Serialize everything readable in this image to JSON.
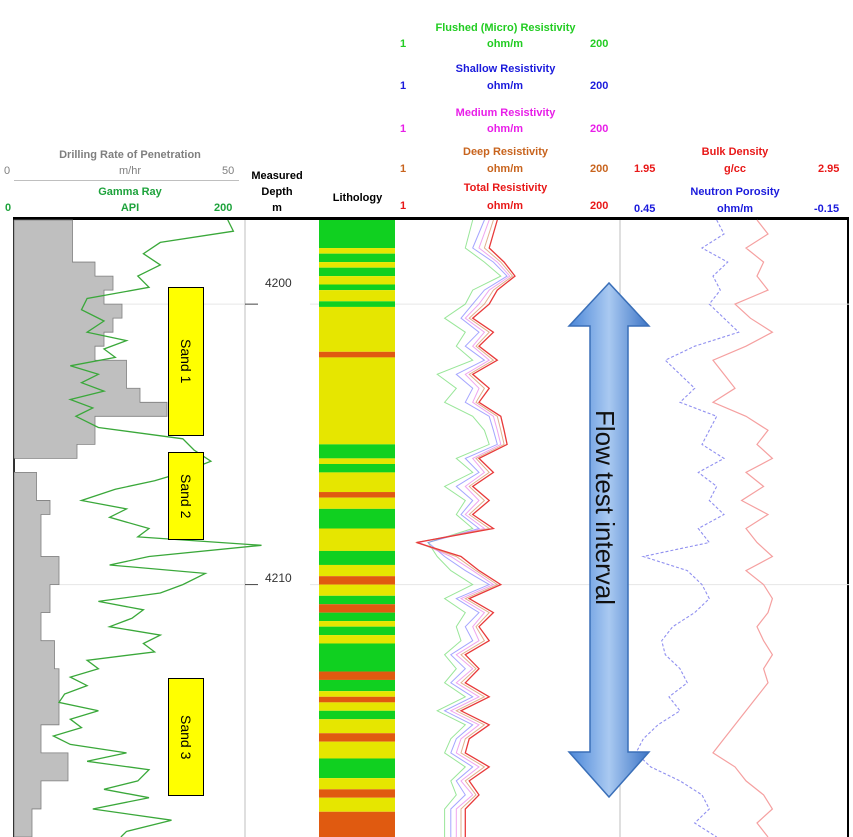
{
  "headers": {
    "rop": {
      "title": "Drilling Rate of Penetration",
      "unit": "m/hr",
      "min": "0",
      "max": "50"
    },
    "gr": {
      "title": "Gamma Ray",
      "unit": "API",
      "min": "0",
      "max": "200"
    },
    "depth": {
      "line1": "Measured",
      "line2": "Depth",
      "line3": "m"
    },
    "lithology": "Lithology",
    "resistivity": [
      {
        "title": "Flushed (Micro) Resistivity",
        "unit": "ohm/m",
        "min": "1",
        "max": "200",
        "color": "#22cc22"
      },
      {
        "title": "Shallow Resistivity",
        "unit": "ohm/m",
        "min": "1",
        "max": "200",
        "color": "#1a1adc"
      },
      {
        "title": "Medium Resistivity",
        "unit": "ohm/m",
        "min": "1",
        "max": "200",
        "color": "#e81ee8"
      },
      {
        "title": "Deep Resistivity",
        "unit": "ohm/m",
        "min": "1",
        "max": "200",
        "color": "#c8641e"
      },
      {
        "title": "Total Resistivity",
        "unit": "ohm/m",
        "min": "1",
        "max": "200",
        "color": "#e81818"
      }
    ],
    "density": {
      "title": "Bulk Density",
      "unit": "g/cc",
      "min": "1.95",
      "max": "2.95",
      "color": "#e81818"
    },
    "neutron": {
      "title": "Neutron Porosity",
      "unit": "ohm/m",
      "min": "0.45",
      "max": "-0.15",
      "color": "#1a1adc"
    }
  },
  "annotations": {
    "sands": [
      "Sand 1",
      "Sand 2",
      "Sand 3"
    ],
    "flow_label": "Flow test interval"
  },
  "chart_data": {
    "type": "line",
    "y_axis": {
      "label": "Measured Depth (m)",
      "range": [
        4197,
        4219
      ],
      "ticks": [
        "4200",
        "4210"
      ],
      "grid": true
    },
    "sand_intervals": [
      {
        "name": "Sand 1",
        "top": 4200.2,
        "base": 4205.2
      },
      {
        "name": "Sand 2",
        "top": 4205.7,
        "base": 4208.7
      },
      {
        "name": "Sand 3",
        "top": 4213.3,
        "base": 4217.3
      }
    ],
    "flow_test_interval": {
      "top": 4200.0,
      "base": 4217.7
    },
    "lithology_colors": {
      "sand": "#e6e600",
      "shale": "#10d020",
      "other": "#e05a10"
    },
    "lithology": [
      [
        4197.0,
        4198.0,
        "shale"
      ],
      [
        4198.0,
        4198.2,
        "sand"
      ],
      [
        4198.2,
        4198.5,
        "shale"
      ],
      [
        4198.5,
        4198.7,
        "sand"
      ],
      [
        4198.7,
        4199.0,
        "shale"
      ],
      [
        4199.0,
        4199.3,
        "sand"
      ],
      [
        4199.3,
        4199.5,
        "shale"
      ],
      [
        4199.5,
        4199.9,
        "sand"
      ],
      [
        4199.9,
        4200.1,
        "shale"
      ],
      [
        4200.1,
        4201.7,
        "sand"
      ],
      [
        4201.7,
        4201.9,
        "other"
      ],
      [
        4201.9,
        4205.0,
        "sand"
      ],
      [
        4205.0,
        4205.5,
        "shale"
      ],
      [
        4205.5,
        4205.7,
        "sand"
      ],
      [
        4205.7,
        4206.0,
        "shale"
      ],
      [
        4206.0,
        4206.7,
        "sand"
      ],
      [
        4206.7,
        4206.9,
        "other"
      ],
      [
        4206.9,
        4207.3,
        "sand"
      ],
      [
        4207.3,
        4208.0,
        "shale"
      ],
      [
        4208.0,
        4208.8,
        "sand"
      ],
      [
        4208.8,
        4209.3,
        "shale"
      ],
      [
        4209.3,
        4209.7,
        "sand"
      ],
      [
        4209.7,
        4210.0,
        "other"
      ],
      [
        4210.0,
        4210.4,
        "sand"
      ],
      [
        4210.4,
        4210.7,
        "shale"
      ],
      [
        4210.7,
        4211.0,
        "other"
      ],
      [
        4211.0,
        4211.3,
        "shale"
      ],
      [
        4211.3,
        4211.5,
        "sand"
      ],
      [
        4211.5,
        4211.8,
        "shale"
      ],
      [
        4211.8,
        4212.1,
        "sand"
      ],
      [
        4212.1,
        4213.1,
        "shale"
      ],
      [
        4213.1,
        4213.4,
        "other"
      ],
      [
        4213.4,
        4213.8,
        "shale"
      ],
      [
        4213.8,
        4214.0,
        "sand"
      ],
      [
        4214.0,
        4214.2,
        "other"
      ],
      [
        4214.2,
        4214.5,
        "sand"
      ],
      [
        4214.5,
        4214.8,
        "shale"
      ],
      [
        4214.8,
        4215.3,
        "sand"
      ],
      [
        4215.3,
        4215.6,
        "other"
      ],
      [
        4215.6,
        4216.2,
        "sand"
      ],
      [
        4216.2,
        4216.9,
        "shale"
      ],
      [
        4216.9,
        4217.3,
        "sand"
      ],
      [
        4217.3,
        4217.6,
        "other"
      ],
      [
        4217.6,
        4218.1,
        "sand"
      ],
      [
        4218.1,
        4219.0,
        "other"
      ]
    ],
    "series": [
      {
        "name": "Drilling Rate of Penetration",
        "range": [
          0,
          50
        ],
        "depth": [
          4197,
          4198,
          4198.5,
          4199,
          4199.5,
          4200,
          4200.5,
          4201,
          4201.5,
          4202,
          4203,
          4203.5,
          4204,
          4205,
          4205.5,
          4206,
          4207,
          4207.5,
          4208,
          4209,
          4210,
          4211,
          4212,
          4213,
          4214,
          4215,
          4216,
          4217,
          4218,
          4219
        ],
        "values": [
          13,
          13,
          18,
          22,
          20,
          24,
          22,
          20,
          18,
          25,
          28,
          34,
          18,
          14,
          0,
          5,
          8,
          6,
          6,
          10,
          8,
          6,
          9,
          10,
          10,
          6,
          12,
          6,
          4,
          3
        ]
      },
      {
        "name": "Gamma Ray",
        "range": [
          0,
          200
        ],
        "depth": [
          4197,
          4197.4,
          4197.8,
          4198.2,
          4198.6,
          4199,
          4199.4,
          4199.8,
          4200.2,
          4200.6,
          4201,
          4201.3,
          4201.6,
          4201.9,
          4202.2,
          4202.5,
          4202.8,
          4203.1,
          4203.4,
          4203.7,
          4204,
          4204.4,
          4204.8,
          4205.2,
          4205.6,
          4206,
          4206.3,
          4206.6,
          4207,
          4207.3,
          4207.6,
          4208,
          4208.3,
          4208.6,
          4209,
          4209.3,
          4209.6,
          4210,
          4210.3,
          4210.6,
          4210.9,
          4211.2,
          4211.5,
          4211.8,
          4212.1,
          4212.4,
          4212.7,
          4213,
          4213.3,
          4213.6,
          4213.9,
          4214.2,
          4214.5,
          4214.8,
          4215.1,
          4215.4,
          4215.7,
          4216,
          4216.3,
          4216.6,
          4217,
          4217.3,
          4217.6,
          4218,
          4218.4,
          4218.8,
          4219
        ],
        "values": [
          190,
          195,
          130,
          115,
          130,
          110,
          120,
          65,
          60,
          80,
          65,
          100,
          80,
          90,
          50,
          75,
          60,
          80,
          50,
          70,
          55,
          75,
          150,
          160,
          175,
          150,
          125,
          90,
          60,
          100,
          85,
          120,
          110,
          220,
          120,
          85,
          170,
          150,
          130,
          75,
          115,
          105,
          85,
          130,
          115,
          125,
          65,
          75,
          50,
          65,
          45,
          40,
          75,
          50,
          60,
          35,
          50,
          100,
          65,
          120,
          110,
          80,
          120,
          70,
          140,
          100,
          95
        ]
      },
      {
        "name": "Flushed (Micro) Resistivity",
        "range": [
          1,
          200
        ],
        "log": true,
        "depth": [
          4197,
          4198,
          4198.5,
          4199,
          4199.5,
          4200,
          4200.5,
          4201,
          4201.5,
          4202,
          4202.5,
          4203,
          4203.5,
          4204,
          4204.5,
          4205,
          4205.5,
          4206,
          4206.5,
          4207,
          4207.5,
          4208,
          4208.5,
          4209,
          4209.5,
          4210,
          4210.5,
          4211,
          4211.5,
          4212,
          4212.5,
          4213,
          4213.5,
          4214,
          4214.5,
          4215,
          4215.5,
          4216,
          4216.5,
          4217,
          4217.5,
          4218,
          4219
        ],
        "values": [
          6,
          5,
          8,
          12,
          6,
          5,
          3,
          5,
          4,
          6,
          2.5,
          4,
          3,
          6,
          8,
          9,
          4,
          6,
          3,
          5,
          4,
          6,
          2,
          2.5,
          3.5,
          6,
          3,
          5,
          4,
          4.5,
          3,
          4,
          3,
          5,
          2.5,
          5,
          3.5,
          3,
          5,
          3.5,
          4,
          3,
          3
        ]
      },
      {
        "name": "Shallow Resistivity",
        "range": [
          1,
          200
        ],
        "log": true,
        "depth": [
          4197,
          4198,
          4198.5,
          4199,
          4199.5,
          4200,
          4200.5,
          4201,
          4201.5,
          4202,
          4202.5,
          4203,
          4203.5,
          4204,
          4204.5,
          4205,
          4205.5,
          4206,
          4206.5,
          4207,
          4207.5,
          4208,
          4208.5,
          4209,
          4209.5,
          4210,
          4210.5,
          4211,
          4211.5,
          4212,
          4212.5,
          4213,
          4213.5,
          4214,
          4214.5,
          4215,
          4215.5,
          4216,
          4216.5,
          4217,
          4217.5,
          4218,
          4219
        ],
        "values": [
          8,
          6,
          10,
          14,
          8,
          6,
          4.5,
          7,
          5,
          8,
          4,
          6,
          5,
          9,
          10,
          11,
          5,
          7,
          4,
          6,
          4.5,
          7,
          2,
          3,
          5,
          9,
          4,
          7,
          5,
          6,
          3.5,
          5,
          3.5,
          6,
          3,
          6,
          4,
          3.5,
          6,
          4,
          5,
          3.5,
          3.5
        ]
      },
      {
        "name": "Medium Resistivity",
        "range": [
          1,
          200
        ],
        "log": true,
        "depth": [
          4197,
          4198,
          4198.5,
          4199,
          4199.5,
          4200,
          4200.5,
          4201,
          4201.5,
          4202,
          4202.5,
          4203,
          4203.5,
          4204,
          4204.5,
          4205,
          4205.5,
          4206,
          4206.5,
          4207,
          4207.5,
          4208,
          4208.5,
          4209,
          4209.5,
          4210,
          4210.5,
          4211,
          4211.5,
          4212,
          4212.5,
          4213,
          4213.5,
          4214,
          4214.5,
          4215,
          4215.5,
          4216,
          4216.5,
          4217,
          4217.5,
          4218,
          4219
        ],
        "values": [
          9,
          7,
          11,
          15,
          9,
          7,
          5,
          8,
          6,
          9,
          5,
          7,
          6,
          10,
          11,
          12,
          6,
          8,
          5,
          7,
          5,
          8,
          1.6,
          3.5,
          6,
          10,
          4.5,
          8,
          6,
          7,
          4,
          6,
          4,
          7,
          3.5,
          7,
          4.5,
          4,
          7,
          4.5,
          6,
          4,
          4
        ]
      },
      {
        "name": "Deep Resistivity",
        "range": [
          1,
          200
        ],
        "log": true,
        "depth": [
          4197,
          4198,
          4198.5,
          4199,
          4199.5,
          4200,
          4200.5,
          4201,
          4201.5,
          4202,
          4202.5,
          4203,
          4203.5,
          4204,
          4204.5,
          4205,
          4205.5,
          4206,
          4206.5,
          4207,
          4207.5,
          4208,
          4208.5,
          4209,
          4209.5,
          4210,
          4210.5,
          4211,
          4211.5,
          4212,
          4212.5,
          4213,
          4213.5,
          4214,
          4214.5,
          4215,
          4215.5,
          4216,
          4216.5,
          4217,
          4217.5,
          4218,
          4219
        ],
        "values": [
          10,
          8,
          12,
          16,
          10,
          8,
          5.5,
          9,
          6.5,
          10,
          5.5,
          8,
          6.5,
          11,
          12,
          13,
          6.5,
          9,
          5.5,
          8,
          5.5,
          9,
          1.5,
          4,
          6.5,
          11,
          5,
          9,
          6.5,
          8,
          4.5,
          6.5,
          4.5,
          8,
          4,
          8,
          5,
          4.5,
          8,
          5,
          6.5,
          4.5,
          4.5
        ]
      },
      {
        "name": "Total Resistivity",
        "range": [
          1,
          200
        ],
        "log": true,
        "depth": [
          4197,
          4198,
          4198.5,
          4199,
          4199.5,
          4200,
          4200.5,
          4201,
          4201.5,
          4202,
          4202.5,
          4203,
          4203.5,
          4204,
          4204.5,
          4205,
          4205.5,
          4206,
          4206.5,
          4207,
          4207.5,
          4208,
          4208.5,
          4209,
          4209.5,
          4210,
          4210.5,
          4211,
          4211.5,
          4212,
          4212.5,
          4213,
          4213.5,
          4214,
          4214.5,
          4215,
          4215.5,
          4216,
          4216.5,
          4217,
          4217.5,
          4218,
          4219
        ],
        "values": [
          11,
          9,
          13,
          17,
          11,
          9,
          6,
          10,
          7,
          11,
          6,
          9,
          7,
          12,
          13,
          14,
          7,
          10,
          6,
          9,
          6,
          10,
          1.5,
          4.5,
          7,
          12,
          5.5,
          10,
          7,
          9,
          5,
          7,
          5,
          9,
          4.5,
          9,
          5.5,
          5,
          9,
          5.5,
          7,
          5,
          5
        ]
      },
      {
        "name": "Bulk Density",
        "range": [
          1.95,
          2.95
        ],
        "depth": [
          4197,
          4197.5,
          4198,
          4198.5,
          4199,
          4199.5,
          4200,
          4200.5,
          4201,
          4201.5,
          4202,
          4202.5,
          4203,
          4203.5,
          4204,
          4204.5,
          4205,
          4205.5,
          4206,
          4206.5,
          4207,
          4207.5,
          4208,
          4208.5,
          4209,
          4209.5,
          4210,
          4210.5,
          4211,
          4211.5,
          4212,
          4212.5,
          4213,
          4213.5,
          4214,
          4214.5,
          4215,
          4215.5,
          4216,
          4216.5,
          4217,
          4217.5,
          4218,
          4218.5,
          4219
        ],
        "values": [
          2.55,
          2.6,
          2.5,
          2.58,
          2.55,
          2.6,
          2.45,
          2.52,
          2.62,
          2.5,
          2.35,
          2.4,
          2.45,
          2.35,
          2.5,
          2.6,
          2.55,
          2.62,
          2.5,
          2.58,
          2.48,
          2.6,
          2.5,
          2.55,
          2.62,
          2.5,
          2.58,
          2.62,
          2.6,
          2.55,
          2.58,
          2.62,
          2.58,
          2.6,
          2.55,
          2.5,
          2.45,
          2.4,
          2.35,
          2.45,
          2.5,
          2.58,
          2.62,
          2.55,
          2.6
        ]
      },
      {
        "name": "Neutron Porosity",
        "range": [
          0.45,
          -0.15
        ],
        "depth": [
          4197,
          4197.5,
          4198,
          4198.5,
          4199,
          4199.5,
          4200,
          4200.5,
          4201,
          4201.5,
          4202,
          4202.5,
          4203,
          4203.5,
          4204,
          4204.5,
          4205,
          4205.5,
          4206,
          4206.5,
          4207,
          4207.5,
          4208,
          4208.5,
          4209,
          4209.5,
          4210,
          4210.5,
          4211,
          4211.5,
          4212,
          4212.5,
          4213,
          4213.5,
          4214,
          4214.5,
          4215,
          4215.5,
          4216,
          4216.5,
          4217,
          4217.5,
          4218,
          4218.5,
          4219
        ],
        "values": [
          0.2,
          0.18,
          0.24,
          0.17,
          0.21,
          0.19,
          0.22,
          0.18,
          0.14,
          0.26,
          0.34,
          0.3,
          0.26,
          0.3,
          0.2,
          0.22,
          0.24,
          0.18,
          0.25,
          0.2,
          0.22,
          0.18,
          0.25,
          0.22,
          0.4,
          0.28,
          0.24,
          0.22,
          0.26,
          0.32,
          0.35,
          0.34,
          0.3,
          0.28,
          0.33,
          0.3,
          0.36,
          0.4,
          0.42,
          0.38,
          0.3,
          0.24,
          0.22,
          0.26,
          0.2
        ]
      }
    ]
  }
}
